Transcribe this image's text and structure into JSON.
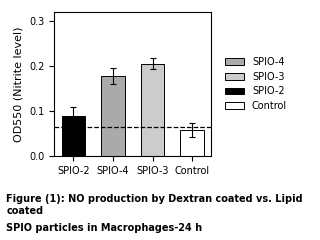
{
  "chart_data": {
    "type": "bar",
    "title": "Figure (1): NO production by Dextran coated vs. Lipid coated",
    "subtitle": "SPIO particles in Macrophages-24 h",
    "categories": [
      "SPIO-2",
      "SPIO-4",
      "SPIO-3",
      "Control"
    ],
    "values": [
      0.088,
      0.178,
      0.205,
      0.058
    ],
    "errors": [
      0.022,
      0.018,
      0.012,
      0.015
    ],
    "colors": [
      "#000000",
      "#aaaaaa",
      "#cccccc",
      "#ffffff"
    ],
    "reference_line": {
      "y": 0.065,
      "line_style": "dashed"
    },
    "ylim": [
      0.0,
      0.32
    ],
    "yticks": [
      0.0,
      0.1,
      0.2,
      0.3
    ],
    "y_label": "OD550 (Nitrite level)",
    "legend": "center left",
    "legend_entries": [
      {
        "name": "SPIO-4",
        "color": "#aaaaaa"
      },
      {
        "name": "SPIO-3",
        "color": "#cccccc"
      },
      {
        "name": "SPIO-2",
        "color": "#000000"
      },
      {
        "name": "Control",
        "color": "#ffffff"
      }
    ],
    "grid": false
  }
}
